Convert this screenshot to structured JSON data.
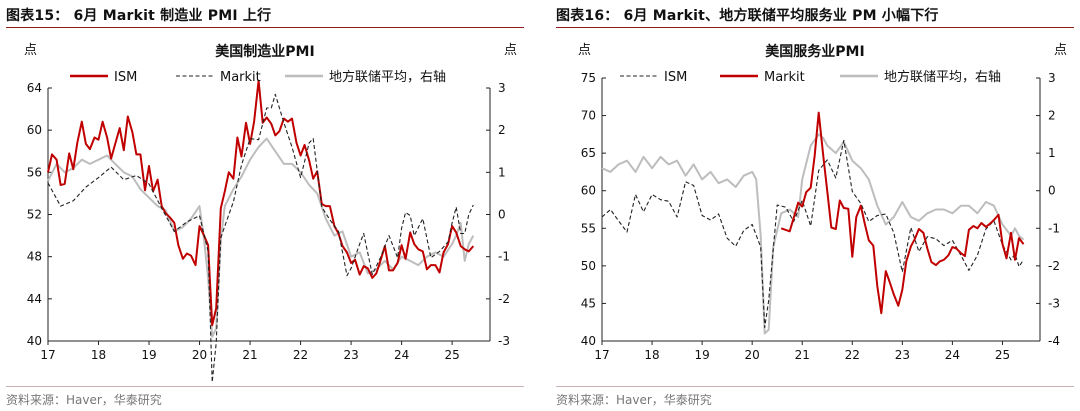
{
  "figures": [
    {
      "title": "图表15： 6月 Markit 制造业 PMI 上行",
      "source": "资料来源：Haver，华泰研究"
    },
    {
      "title": "图表16： 6月 Markit、地方联储平均服务业 PM 小幅下行",
      "source": "资料来源：Haver，华泰研究"
    }
  ],
  "chart_data": [
    {
      "type": "line",
      "title": "美国制造业PMI",
      "left_unit": "点",
      "right_unit": "点",
      "ylim": [
        40,
        64
      ],
      "y2lim": [
        -3,
        3
      ],
      "yticks": [
        40,
        44,
        48,
        52,
        56,
        60,
        64
      ],
      "y2ticks": [
        -3,
        -2,
        -1,
        0,
        1,
        2,
        3
      ],
      "xticks": [
        "17",
        "18",
        "19",
        "20",
        "21",
        "22",
        "23",
        "24",
        "25"
      ],
      "xlim": [
        2017.0,
        2025.75
      ],
      "legend_position": "top",
      "series": [
        {
          "name": "ISM",
          "axis": "left",
          "color": "#c00000",
          "style": "solid",
          "x": [
            2017.0,
            2017.08,
            2017.17,
            2017.25,
            2017.33,
            2017.42,
            2017.5,
            2017.58,
            2017.67,
            2017.75,
            2017.83,
            2017.92,
            2018.0,
            2018.08,
            2018.17,
            2018.25,
            2018.33,
            2018.42,
            2018.5,
            2018.58,
            2018.67,
            2018.75,
            2018.83,
            2018.92,
            2019.0,
            2019.08,
            2019.17,
            2019.25,
            2019.33,
            2019.42,
            2019.5,
            2019.58,
            2019.67,
            2019.75,
            2019.83,
            2019.92,
            2020.0,
            2020.08,
            2020.17,
            2020.25,
            2020.33,
            2020.42,
            2020.5,
            2020.58,
            2020.67,
            2020.75,
            2020.83,
            2020.92,
            2021.0,
            2021.08,
            2021.17,
            2021.25,
            2021.33,
            2021.42,
            2021.5,
            2021.58,
            2021.67,
            2021.75,
            2021.83,
            2021.92,
            2022.0,
            2022.08,
            2022.17,
            2022.25,
            2022.33,
            2022.42,
            2022.5,
            2022.58,
            2022.67,
            2022.75,
            2022.83,
            2022.92,
            2023.0,
            2023.08,
            2023.17,
            2023.25,
            2023.33,
            2023.42,
            2023.5,
            2023.58,
            2023.67,
            2023.75,
            2023.83,
            2023.92,
            2024.0,
            2024.08,
            2024.17,
            2024.25,
            2024.33,
            2024.42,
            2024.5,
            2024.58,
            2024.67,
            2024.75,
            2024.83,
            2024.92,
            2025.0,
            2025.08,
            2025.17,
            2025.25,
            2025.33,
            2025.42
          ],
          "y": [
            56.0,
            57.7,
            57.2,
            54.8,
            54.9,
            57.8,
            56.3,
            58.8,
            60.8,
            58.7,
            58.2,
            59.3,
            59.1,
            60.8,
            59.3,
            57.3,
            58.7,
            60.2,
            58.1,
            61.3,
            59.8,
            57.7,
            57.7,
            54.3,
            56.6,
            54.2,
            55.3,
            52.8,
            52.1,
            51.7,
            51.2,
            49.1,
            47.8,
            48.3,
            48.1,
            47.2,
            50.9,
            50.1,
            49.1,
            41.5,
            43.1,
            52.6,
            54.2,
            56.0,
            55.4,
            59.3,
            57.5,
            60.7,
            58.7,
            60.8,
            64.7,
            60.7,
            61.2,
            60.6,
            59.5,
            59.9,
            61.1,
            60.8,
            61.1,
            58.8,
            57.6,
            58.6,
            57.1,
            55.4,
            56.1,
            53.0,
            52.8,
            52.8,
            50.9,
            50.2,
            49.0,
            48.4,
            47.4,
            47.7,
            46.3,
            47.1,
            46.9,
            46.0,
            46.4,
            47.6,
            49.0,
            46.7,
            46.7,
            47.4,
            49.1,
            47.8,
            50.3,
            49.2,
            48.7,
            48.5,
            46.8,
            47.2,
            47.2,
            46.5,
            48.4,
            49.2,
            50.9,
            50.3,
            49.0,
            48.7,
            48.5,
            49.0
          ]
        },
        {
          "name": "Markit",
          "axis": "left",
          "color": "#222222",
          "style": "dashed",
          "x": [
            2017.0,
            2017.25,
            2017.5,
            2017.75,
            2018.0,
            2018.25,
            2018.5,
            2018.75,
            2019.0,
            2019.25,
            2019.5,
            2019.75,
            2020.0,
            2020.17,
            2020.25,
            2020.33,
            2020.42,
            2020.5,
            2020.67,
            2020.83,
            2021.0,
            2021.17,
            2021.33,
            2021.42,
            2021.5,
            2021.67,
            2021.83,
            2022.0,
            2022.17,
            2022.25,
            2022.42,
            2022.58,
            2022.75,
            2022.92,
            2023.0,
            2023.17,
            2023.25,
            2023.42,
            2023.58,
            2023.75,
            2023.92,
            2024.0,
            2024.08,
            2024.17,
            2024.25,
            2024.42,
            2024.58,
            2024.75,
            2024.92,
            2025.0,
            2025.08,
            2025.17,
            2025.25,
            2025.33,
            2025.42
          ],
          "y": [
            55.0,
            52.8,
            53.3,
            54.6,
            55.5,
            56.5,
            55.3,
            55.7,
            54.9,
            52.6,
            50.4,
            51.3,
            51.9,
            48.5,
            36.1,
            39.8,
            49.8,
            50.9,
            53.2,
            56.7,
            59.2,
            59.1,
            62.1,
            62.1,
            63.4,
            60.7,
            58.4,
            55.5,
            58.8,
            59.2,
            52.7,
            51.5,
            50.4,
            46.2,
            46.9,
            49.2,
            50.2,
            46.3,
            47.9,
            50.0,
            47.9,
            50.7,
            52.2,
            51.9,
            50.0,
            51.6,
            47.9,
            48.5,
            49.4,
            51.2,
            52.7,
            50.2,
            50.2,
            52.0,
            52.9
          ]
        },
        {
          "name": "地方联储平均，右轴",
          "axis": "right",
          "color": "#bdbdbd",
          "style": "solid",
          "x": [
            2017.0,
            2017.17,
            2017.33,
            2017.5,
            2017.67,
            2017.83,
            2018.0,
            2018.17,
            2018.33,
            2018.5,
            2018.67,
            2018.83,
            2019.0,
            2019.17,
            2019.33,
            2019.5,
            2019.67,
            2019.83,
            2020.0,
            2020.08,
            2020.17,
            2020.25,
            2020.33,
            2020.42,
            2020.5,
            2020.67,
            2020.83,
            2021.0,
            2021.17,
            2021.33,
            2021.5,
            2021.67,
            2021.83,
            2022.0,
            2022.17,
            2022.33,
            2022.5,
            2022.67,
            2022.83,
            2023.0,
            2023.17,
            2023.33,
            2023.5,
            2023.67,
            2023.83,
            2024.0,
            2024.17,
            2024.33,
            2024.5,
            2024.67,
            2024.83,
            2025.0,
            2025.08,
            2025.17,
            2025.25,
            2025.33,
            2025.42
          ],
          "y": [
            0.8,
            1.2,
            1.0,
            1.1,
            1.3,
            1.2,
            1.3,
            1.4,
            1.2,
            1.0,
            0.9,
            0.6,
            0.4,
            0.2,
            0.1,
            -0.4,
            -0.3,
            -0.1,
            0.2,
            -0.5,
            -1.5,
            -2.9,
            -2.7,
            -0.6,
            0.2,
            0.6,
            0.9,
            1.3,
            1.6,
            1.8,
            1.5,
            1.2,
            1.2,
            1.0,
            0.7,
            0.5,
            -0.1,
            -0.5,
            -0.4,
            -1.0,
            -0.9,
            -1.4,
            -1.3,
            -1.1,
            -1.3,
            -1.0,
            -1.1,
            -1.2,
            -1.0,
            -0.9,
            -1.0,
            -0.7,
            -0.5,
            -0.2,
            -1.1,
            -0.7,
            -0.5
          ]
        }
      ]
    },
    {
      "type": "line",
      "title": "美国服务业PMI",
      "left_unit": "点",
      "right_unit": "点",
      "ylim": [
        40,
        75
      ],
      "y2lim": [
        -4,
        3
      ],
      "yticks": [
        40,
        45,
        50,
        55,
        60,
        65,
        70,
        75
      ],
      "y2ticks": [
        -4,
        -3,
        -2,
        -1,
        0,
        1,
        2,
        3
      ],
      "xticks": [
        "17",
        "18",
        "19",
        "20",
        "21",
        "22",
        "23",
        "24",
        "25"
      ],
      "xlim": [
        2017.0,
        2025.75
      ],
      "legend_position": "top",
      "series": [
        {
          "name": "ISM",
          "axis": "left",
          "color": "#222222",
          "style": "dashed",
          "x": [
            2017.0,
            2017.17,
            2017.33,
            2017.5,
            2017.67,
            2017.83,
            2018.0,
            2018.17,
            2018.33,
            2018.5,
            2018.67,
            2018.83,
            2019.0,
            2019.17,
            2019.33,
            2019.5,
            2019.67,
            2019.83,
            2020.0,
            2020.17,
            2020.25,
            2020.33,
            2020.5,
            2020.67,
            2020.83,
            2021.0,
            2021.17,
            2021.33,
            2021.5,
            2021.67,
            2021.83,
            2022.0,
            2022.17,
            2022.33,
            2022.5,
            2022.67,
            2022.83,
            2023.0,
            2023.17,
            2023.33,
            2023.5,
            2023.67,
            2023.83,
            2024.0,
            2024.17,
            2024.33,
            2024.5,
            2024.67,
            2024.83,
            2025.0,
            2025.17,
            2025.25,
            2025.33,
            2025.42
          ],
          "y": [
            56.5,
            57.5,
            56.0,
            54.5,
            59.5,
            57.2,
            59.5,
            58.8,
            58.6,
            56.5,
            61.2,
            60.7,
            56.7,
            56.1,
            56.9,
            53.7,
            52.6,
            54.7,
            55.5,
            52.5,
            41.8,
            45.4,
            58.1,
            57.8,
            55.9,
            58.7,
            55.3,
            62.7,
            64.1,
            61.7,
            66.7,
            59.9,
            58.3,
            55.9,
            56.7,
            56.9,
            54.4,
            49.2,
            55.1,
            51.9,
            53.9,
            53.6,
            52.7,
            53.4,
            51.4,
            49.4,
            51.4,
            54.9,
            56.0,
            52.8,
            50.8,
            51.6,
            49.9,
            50.8
          ]
        },
        {
          "name": "Markit",
          "axis": "left",
          "color": "#c00000",
          "style": "solid",
          "x": [
            2020.58,
            2020.75,
            2020.92,
            2021.0,
            2021.08,
            2021.17,
            2021.25,
            2021.33,
            2021.42,
            2021.5,
            2021.58,
            2021.67,
            2021.75,
            2021.83,
            2021.92,
            2022.0,
            2022.08,
            2022.17,
            2022.25,
            2022.33,
            2022.42,
            2022.5,
            2022.58,
            2022.67,
            2022.75,
            2022.83,
            2022.92,
            2023.0,
            2023.08,
            2023.17,
            2023.25,
            2023.33,
            2023.42,
            2023.5,
            2023.58,
            2023.67,
            2023.75,
            2023.83,
            2023.92,
            2024.0,
            2024.08,
            2024.17,
            2024.25,
            2024.33,
            2024.42,
            2024.5,
            2024.58,
            2024.67,
            2024.75,
            2024.83,
            2024.92,
            2025.0,
            2025.08,
            2025.17,
            2025.25,
            2025.33,
            2025.42
          ],
          "y": [
            55.0,
            54.6,
            58.4,
            57.9,
            59.8,
            60.4,
            64.7,
            70.4,
            64.6,
            59.9,
            55.1,
            54.9,
            58.7,
            57.7,
            57.6,
            51.2,
            56.5,
            58.0,
            55.6,
            53.4,
            52.7,
            47.3,
            43.7,
            49.3,
            47.8,
            46.2,
            44.7,
            46.8,
            50.6,
            52.6,
            53.6,
            54.9,
            54.4,
            52.3,
            50.5,
            50.1,
            50.6,
            50.8,
            51.4,
            52.5,
            52.3,
            51.7,
            51.3,
            54.8,
            55.3,
            55.0,
            55.7,
            55.2,
            55.6,
            56.1,
            56.8,
            52.9,
            51.0,
            54.4,
            50.8,
            53.7,
            52.9
          ]
        },
        {
          "name": "地方联储平均，右轴",
          "axis": "right",
          "color": "#bdbdbd",
          "style": "solid",
          "x": [
            2017.0,
            2017.17,
            2017.33,
            2017.5,
            2017.67,
            2017.83,
            2018.0,
            2018.17,
            2018.33,
            2018.5,
            2018.67,
            2018.83,
            2019.0,
            2019.17,
            2019.33,
            2019.5,
            2019.67,
            2019.83,
            2020.0,
            2020.08,
            2020.17,
            2020.25,
            2020.33,
            2020.42,
            2020.58,
            2020.75,
            2020.92,
            2021.0,
            2021.17,
            2021.33,
            2021.42,
            2021.5,
            2021.67,
            2021.83,
            2022.0,
            2022.17,
            2022.33,
            2022.5,
            2022.67,
            2022.83,
            2023.0,
            2023.17,
            2023.33,
            2023.5,
            2023.67,
            2023.83,
            2024.0,
            2024.17,
            2024.33,
            2024.5,
            2024.67,
            2024.83,
            2025.0,
            2025.17,
            2025.25,
            2025.33,
            2025.42
          ],
          "y": [
            0.6,
            0.5,
            0.7,
            0.8,
            0.5,
            0.9,
            0.6,
            0.9,
            0.7,
            0.8,
            0.4,
            0.7,
            0.3,
            0.5,
            0.2,
            0.3,
            0.1,
            0.4,
            0.5,
            0.3,
            -1.2,
            -3.8,
            -3.7,
            -1.5,
            -0.6,
            -0.5,
            -0.7,
            0.3,
            1.2,
            1.5,
            1.4,
            1.2,
            1.0,
            1.3,
            0.8,
            0.6,
            0.3,
            -0.4,
            -0.9,
            -0.7,
            -0.3,
            -0.7,
            -0.8,
            -0.6,
            -0.5,
            -0.5,
            -0.6,
            -0.4,
            -0.4,
            -0.6,
            -0.3,
            -0.4,
            -0.9,
            -1.2,
            -1.0,
            -1.2,
            -1.3
          ]
        }
      ]
    }
  ]
}
